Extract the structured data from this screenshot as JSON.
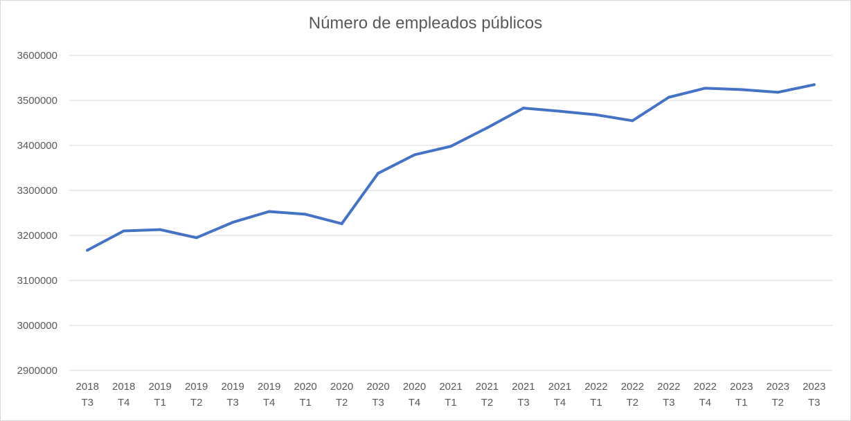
{
  "chart_data": {
    "type": "line",
    "title": "Número de empleados públicos",
    "xlabel": "",
    "ylabel": "",
    "ylim": [
      2900000,
      3600000
    ],
    "yticks": [
      "3600000",
      "3500000",
      "3400000",
      "3300000",
      "3200000",
      "3100000",
      "3000000",
      "2900000"
    ],
    "grid": true,
    "legend": "none",
    "line_color": "#4472c4",
    "categories": [
      [
        "2018",
        "T3"
      ],
      [
        "2018",
        "T4"
      ],
      [
        "2019",
        "T1"
      ],
      [
        "2019",
        "T2"
      ],
      [
        "2019",
        "T3"
      ],
      [
        "2019",
        "T4"
      ],
      [
        "2020",
        "T1"
      ],
      [
        "2020",
        "T2"
      ],
      [
        "2020",
        "T3"
      ],
      [
        "2020",
        "T4"
      ],
      [
        "2021",
        "T1"
      ],
      [
        "2021",
        "T2"
      ],
      [
        "2021",
        "T3"
      ],
      [
        "2021",
        "T4"
      ],
      [
        "2022",
        "T1"
      ],
      [
        "2022",
        "T2"
      ],
      [
        "2022",
        "T3"
      ],
      [
        "2022",
        "T4"
      ],
      [
        "2023",
        "T1"
      ],
      [
        "2023",
        "T2"
      ],
      [
        "2023",
        "T3"
      ]
    ],
    "series": [
      {
        "values": [
          3167000,
          3210000,
          3213000,
          3195000,
          3229000,
          3253000,
          3247000,
          3226000,
          3338000,
          3379000,
          3398000,
          3439000,
          3483000,
          3476000,
          3468000,
          3455000,
          3507000,
          3527000,
          3524000,
          3518000,
          3535000
        ]
      }
    ]
  }
}
